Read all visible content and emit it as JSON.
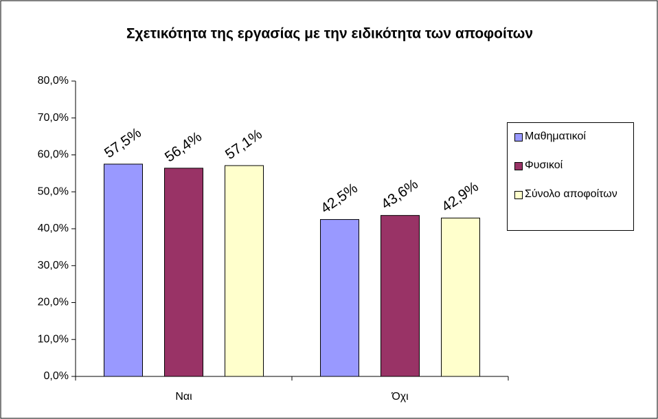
{
  "chart_data": {
    "type": "bar",
    "title": "Σχετικότητα της εργασίας με την ειδικότητα των αποφοίτων",
    "categories": [
      "Ναι",
      "Όχι"
    ],
    "series": [
      {
        "name": "Μαθηματικοί",
        "color": "#9999ff",
        "values": [
          57.5,
          42.5
        ],
        "value_labels": [
          "57,5%",
          "42,5%"
        ]
      },
      {
        "name": "Φυσικοί",
        "color": "#993366",
        "values": [
          56.4,
          43.6
        ],
        "value_labels": [
          "56,4%",
          "43,6%"
        ]
      },
      {
        "name": "Σύνολο αποφοίτων",
        "color": "#ffffcc",
        "values": [
          57.1,
          42.9
        ],
        "value_labels": [
          "57,1%",
          "42,9%"
        ]
      }
    ],
    "ylim": [
      0,
      80
    ],
    "yticks": [
      {
        "value": 0,
        "label": "0,0%"
      },
      {
        "value": 10,
        "label": "10,0%"
      },
      {
        "value": 20,
        "label": "20,0%"
      },
      {
        "value": 30,
        "label": "30,0%"
      },
      {
        "value": 40,
        "label": "40,0%"
      },
      {
        "value": 50,
        "label": "50,0%"
      },
      {
        "value": 60,
        "label": "60,0%"
      },
      {
        "value": 70,
        "label": "70,0%"
      },
      {
        "value": 80,
        "label": "80,0%"
      }
    ],
    "grid": false,
    "legend": "right"
  }
}
